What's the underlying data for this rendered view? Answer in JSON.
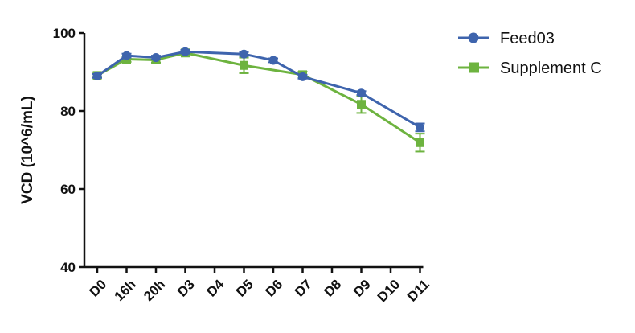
{
  "chart_data": {
    "type": "line",
    "title": "",
    "xlabel": "",
    "ylabel": "VCD (10^6/mL)",
    "ylim": [
      40,
      100
    ],
    "yticks": [
      40,
      60,
      80,
      100
    ],
    "categories": [
      "D0",
      "16h",
      "20h",
      "D3",
      "D4",
      "D5",
      "D6",
      "D7",
      "D8",
      "D9",
      "D10",
      "D11"
    ],
    "grid": false,
    "legend_position": "top-right",
    "series": [
      {
        "name": "Feed03",
        "marker": "circle",
        "color": "#3e64ad",
        "values": [
          89.0,
          94.2,
          93.7,
          95.2,
          null,
          94.6,
          93.0,
          88.8,
          null,
          84.6,
          null,
          75.8
        ],
        "errors": [
          0.5,
          0.5,
          0.5,
          0.5,
          null,
          0.5,
          0.5,
          0.5,
          null,
          0.5,
          null,
          1.0
        ]
      },
      {
        "name": "Supplement C",
        "marker": "square",
        "color": "#6db33f",
        "values": [
          89.1,
          93.3,
          93.1,
          94.9,
          null,
          91.7,
          null,
          89.3,
          null,
          81.7,
          null,
          71.9
        ],
        "errors": [
          0.5,
          0.7,
          0.7,
          0.5,
          null,
          2.0,
          null,
          0.8,
          null,
          2.2,
          null,
          2.3
        ]
      }
    ]
  }
}
